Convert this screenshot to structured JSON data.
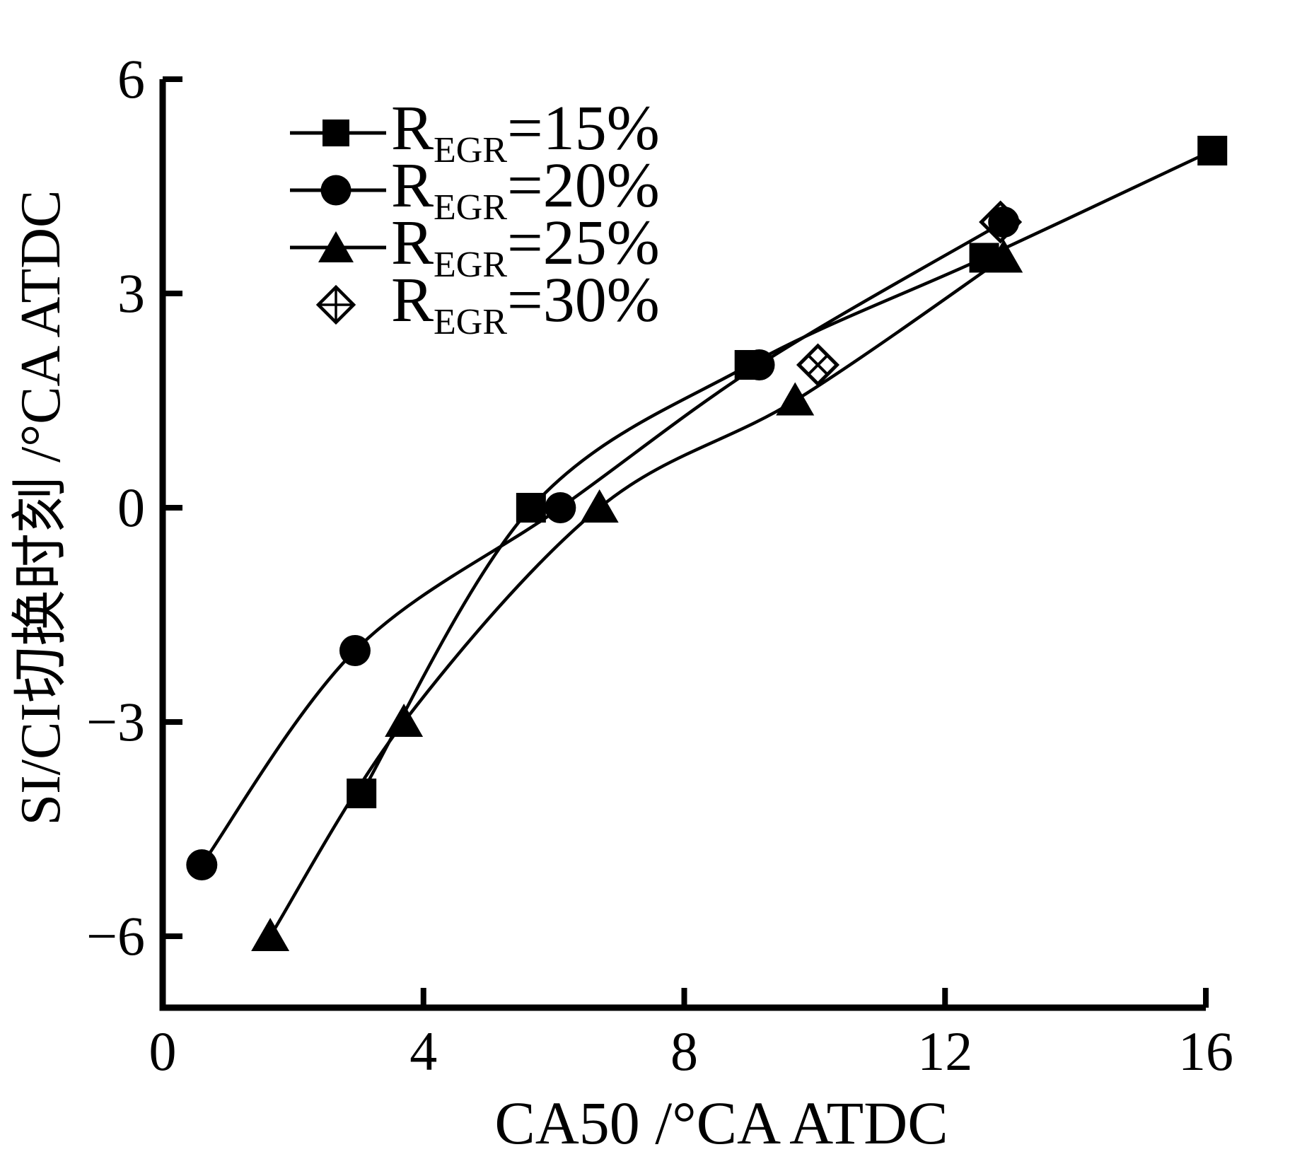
{
  "figure": {
    "background": "#ffffff",
    "ink": "#000000"
  },
  "chart_data": {
    "type": "line",
    "title": "",
    "xlabel": "CA50 /°CA ATDC",
    "ylabel": "SI/CI切换时刻 /°CA ATDC",
    "xlim": [
      0,
      16
    ],
    "ylim": [
      -7,
      6
    ],
    "x_ticks": [
      0,
      4,
      8,
      12,
      16
    ],
    "x_tick_labels": [
      "0",
      "4",
      "8",
      "12",
      "16"
    ],
    "y_ticks": [
      -6,
      -3,
      0,
      3,
      6
    ],
    "y_tick_labels": [
      "−6",
      "−3",
      "0",
      "3",
      "6"
    ],
    "grid": false,
    "legend_position": "upper-left-inside",
    "series": [
      {
        "id": "regr-15",
        "name": "R_EGR=15%",
        "label_parts": {
          "prefix": "R",
          "subscript": "EGR",
          "suffix": "=15%"
        },
        "marker": "square-filled",
        "line": true,
        "points": [
          [
            3.05,
            -4.0
          ],
          [
            5.65,
            0.0
          ],
          [
            9.0,
            2.0
          ],
          [
            12.6,
            3.5
          ],
          [
            16.1,
            5.0
          ]
        ]
      },
      {
        "id": "regr-20",
        "name": "R_EGR=20%",
        "label_parts": {
          "prefix": "R",
          "subscript": "EGR",
          "suffix": "=20%"
        },
        "marker": "circle-filled",
        "line": true,
        "points": [
          [
            0.6,
            -5.0
          ],
          [
            2.95,
            -2.0
          ],
          [
            6.1,
            0.0
          ],
          [
            9.15,
            2.0
          ],
          [
            12.9,
            4.0
          ]
        ]
      },
      {
        "id": "regr-25",
        "name": "R_EGR=25%",
        "label_parts": {
          "prefix": "R",
          "subscript": "EGR",
          "suffix": "=25%"
        },
        "marker": "triangle-filled",
        "line": true,
        "points": [
          [
            1.65,
            -6.0
          ],
          [
            3.7,
            -3.0
          ],
          [
            6.7,
            0.0
          ],
          [
            9.7,
            1.5
          ],
          [
            12.9,
            3.5
          ]
        ]
      },
      {
        "id": "regr-30",
        "name": "R_EGR=30%",
        "label_parts": {
          "prefix": "R",
          "subscript": "EGR",
          "suffix": "=30%"
        },
        "marker": "diamond-open-cross",
        "line": false,
        "points": [
          [
            10.05,
            2.0
          ],
          [
            12.85,
            4.0
          ]
        ]
      }
    ]
  }
}
